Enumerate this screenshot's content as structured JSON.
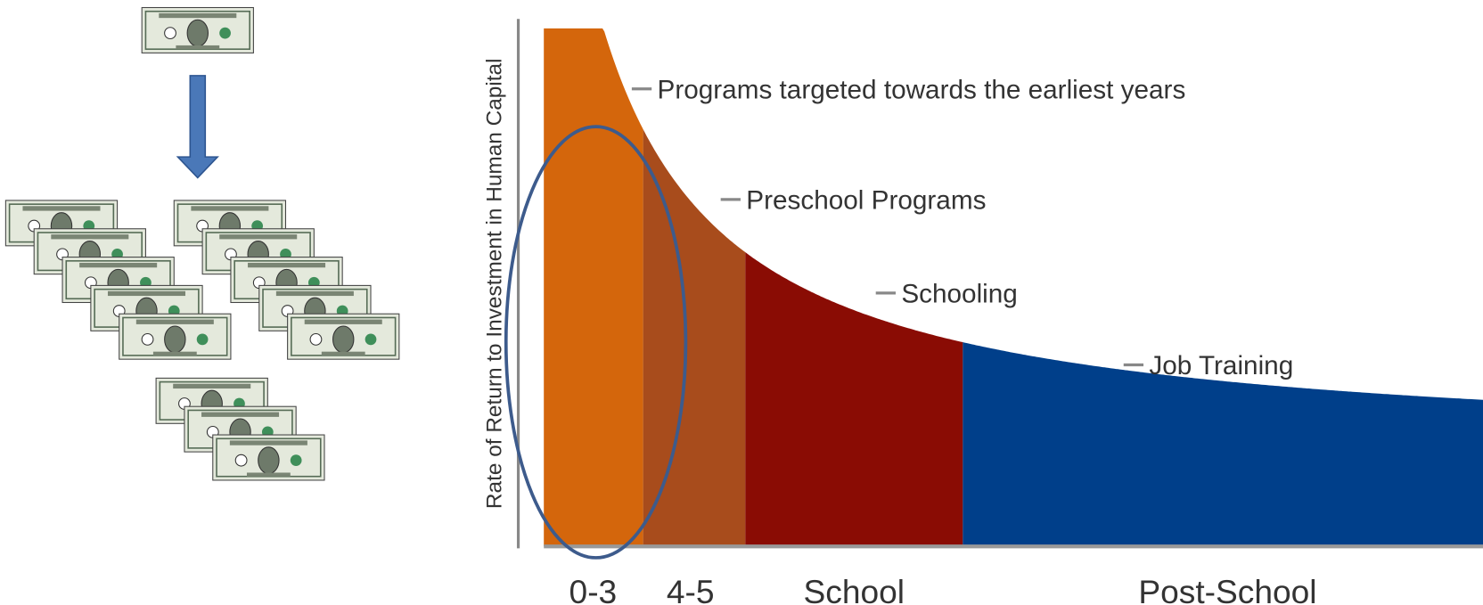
{
  "y_axis_label": "Rate of Return to Investment in Human Capital",
  "annotations": [
    "Programs targeted towards the earliest years",
    "Preschool Programs",
    "Schooling",
    "Job Training"
  ],
  "segments": [
    {
      "label": "0-3"
    },
    {
      "label": "4-5"
    },
    {
      "label": "School"
    },
    {
      "label": "Post-School"
    }
  ]
}
